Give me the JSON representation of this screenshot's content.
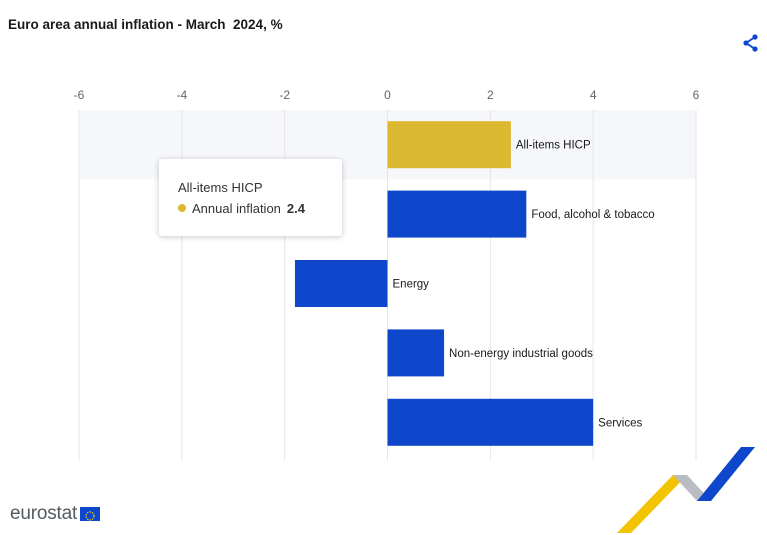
{
  "title": "Euro area annual inflation - March  2024, %",
  "icons": {
    "share": "share-icon",
    "logo_flag": "eu-flag-icon"
  },
  "colors": {
    "highlight": "#dcb830",
    "bar": "#0e47cb",
    "hover_band": "#f5f7fb",
    "grid": "#e6e6e6"
  },
  "chart_data": {
    "type": "bar",
    "orientation": "horizontal",
    "categories": [
      "All-items HICP",
      "Food, alcohol & tobacco",
      "Energy",
      "Non-energy industrial goods",
      "Services"
    ],
    "series": [
      {
        "name": "Annual inflation",
        "values": [
          2.4,
          2.7,
          -1.8,
          1.1,
          4.0
        ]
      }
    ],
    "highlighted_category": "All-items HICP",
    "xlim": [
      -6,
      6
    ],
    "xticks": [
      "-6",
      "-4",
      "-2",
      "0",
      "2",
      "4",
      "6"
    ],
    "axis_position": "top",
    "grid": true,
    "title": "Euro area annual inflation - March  2024, %"
  },
  "tooltip": {
    "category": "All-items HICP",
    "series_label": "Annual inflation",
    "value": "2.4"
  },
  "footer": {
    "brand": "eurostat"
  }
}
